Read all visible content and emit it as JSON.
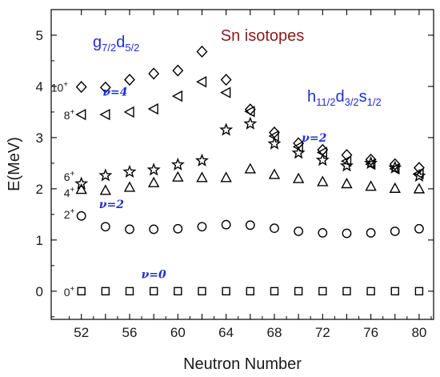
{
  "chart_data": {
    "type": "scatter",
    "title": "Sn isotopes",
    "xlabel": "Neutron Number",
    "ylabel": "E(MeV)",
    "xlim": [
      49.5,
      81.2
    ],
    "ylim": [
      -0.55,
      5.5
    ],
    "xticks": [
      52,
      54,
      56,
      58,
      60,
      62,
      64,
      66,
      68,
      70,
      72,
      74,
      76,
      78,
      80
    ],
    "xtick_labels": [
      "52",
      "56",
      "60",
      "64",
      "68",
      "72",
      "76",
      "80"
    ],
    "yticks": [
      0,
      1,
      2,
      3,
      4,
      5
    ],
    "ytick_labels": [
      "0",
      "1",
      "2",
      "3",
      "4",
      "5"
    ],
    "grid": false,
    "series": [
      {
        "marker": "square",
        "x": [
          52,
          54,
          56,
          58,
          60,
          62,
          64,
          66,
          68,
          70,
          72,
          74,
          76,
          78,
          80
        ],
        "y": [
          0,
          0,
          0,
          0,
          0,
          0,
          0,
          0,
          0,
          0,
          0,
          0,
          0,
          0,
          0
        ]
      },
      {
        "marker": "circle",
        "x": [
          52,
          54,
          56,
          58,
          60,
          62,
          64,
          66,
          68,
          70,
          72,
          74,
          76,
          78,
          80
        ],
        "y": [
          1.47,
          1.26,
          1.21,
          1.21,
          1.22,
          1.26,
          1.3,
          1.29,
          1.23,
          1.17,
          1.14,
          1.13,
          1.14,
          1.17,
          1.22
        ]
      },
      {
        "marker": "triangle-up",
        "x": [
          52,
          54,
          56,
          58,
          60,
          62,
          64,
          66,
          68,
          70,
          72,
          74,
          76,
          78,
          80
        ],
        "y": [
          1.99,
          1.97,
          2.03,
          2.12,
          2.23,
          2.22,
          2.22,
          2.39,
          2.28,
          2.2,
          2.14,
          2.1,
          2.05,
          2.01,
          2.0
        ]
      },
      {
        "marker": "star",
        "x": [
          52,
          54,
          56,
          58,
          60,
          62,
          64,
          66,
          68,
          70,
          72,
          74,
          76,
          78,
          80
        ],
        "y": [
          2.1,
          2.26,
          2.33,
          2.37,
          2.47,
          2.55,
          3.15,
          3.27,
          2.88,
          2.7,
          2.56,
          2.45,
          2.5,
          2.41,
          2.25
        ]
      },
      {
        "marker": "triangle-left",
        "x": [
          52,
          54,
          56,
          58,
          60,
          62,
          64,
          66,
          68,
          70,
          72,
          74,
          76,
          78,
          80
        ],
        "y": [
          3.45,
          3.45,
          3.5,
          3.56,
          3.81,
          4.09,
          3.88,
          3.51,
          3.03,
          2.82,
          2.71,
          2.54,
          2.48,
          2.39,
          2.3
        ]
      },
      {
        "marker": "diamond",
        "x": [
          52,
          54,
          56,
          58,
          60,
          62,
          64,
          66,
          68,
          70,
          72,
          74,
          76,
          78,
          80
        ],
        "y": [
          3.99,
          3.98,
          4.13,
          4.25,
          4.31,
          4.68,
          4.13,
          3.55,
          3.1,
          2.89,
          2.76,
          2.66,
          2.57,
          2.48,
          2.41
        ]
      }
    ],
    "state_labels": [
      {
        "base": "0",
        "sup": "+",
        "y": 0.0
      },
      {
        "base": "2",
        "sup": "+",
        "y": 1.45
      },
      {
        "base": "4",
        "sup": "+",
        "y": 1.97
      },
      {
        "base": "6",
        "sup": "+",
        "y": 2.12
      },
      {
        "base": "8",
        "sup": "+",
        "y": 3.45
      },
      {
        "base": "10",
        "sup": "+",
        "y": 3.99
      }
    ],
    "seniority_labels": [
      {
        "text": "ν=0",
        "x": 58,
        "y": 0.33
      },
      {
        "text": "ν=2",
        "x": 54.5,
        "y": 1.7
      },
      {
        "text": "ν=4",
        "x": 54.8,
        "y": 3.9
      },
      {
        "text": "ν=2",
        "x": 71.3,
        "y": 3.0
      }
    ],
    "orbital_labels": [
      {
        "id": "left",
        "parts": [
          {
            "t": "g",
            "sub": false
          },
          {
            "t": "7/2",
            "sub": true
          },
          {
            "t": "d",
            "sub": false
          },
          {
            "t": "5/2",
            "sub": true
          }
        ]
      },
      {
        "id": "right",
        "parts": [
          {
            "t": "h",
            "sub": false
          },
          {
            "t": "11/2",
            "sub": true
          },
          {
            "t": "d",
            "sub": false
          },
          {
            "t": "3/2",
            "sub": true
          },
          {
            "t": "s",
            "sub": false
          },
          {
            "t": "1/2",
            "sub": true
          }
        ]
      }
    ]
  }
}
